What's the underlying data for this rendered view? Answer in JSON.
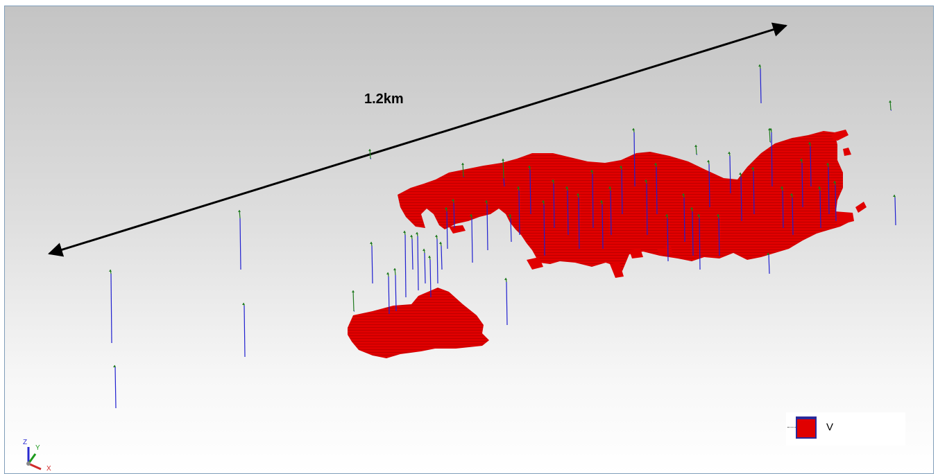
{
  "scale_bar": {
    "label": "1.2km"
  },
  "legend": {
    "label": "V",
    "swatch_color": "#e00000",
    "border_color": "#2a2a9a"
  },
  "axes": {
    "x_label": "X",
    "y_label": "Y",
    "z_label": "Z"
  },
  "colors": {
    "orebody": "#e00000",
    "orebody_dark": "#b80000",
    "drillhole_upper": "#1f7a1f",
    "drillhole_lower": "#1f1fd0"
  }
}
